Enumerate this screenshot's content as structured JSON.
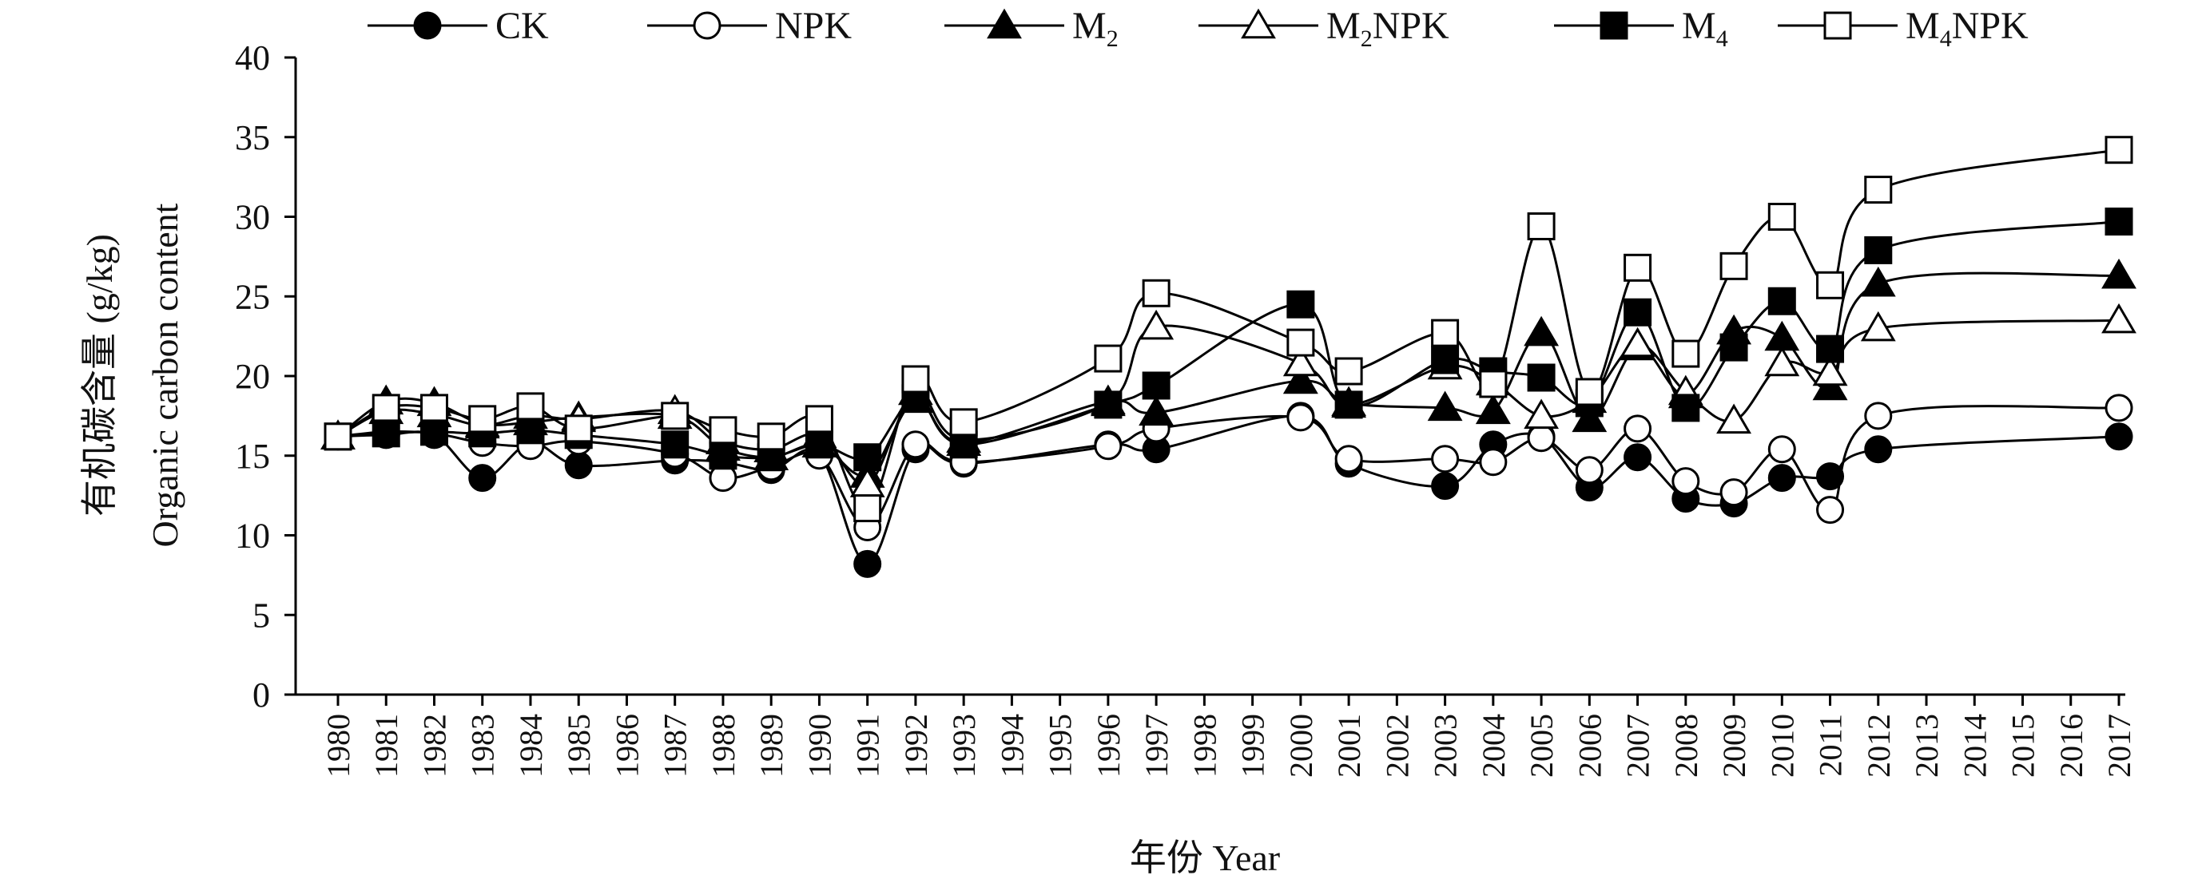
{
  "chart_data": {
    "type": "line",
    "title": "",
    "ylabel_cn": "有机碳含量 (g/kg)",
    "ylabel_en": "Organic carbon content",
    "xlabel": "年份 Year",
    "ylim": [
      0,
      40
    ],
    "yticks": [
      0,
      5,
      10,
      15,
      20,
      25,
      30,
      35,
      40
    ],
    "grid": false,
    "legend_position": "top",
    "x": [
      1980,
      1981,
      1982,
      1983,
      1984,
      1985,
      1986,
      1987,
      1988,
      1989,
      1990,
      1991,
      1992,
      1993,
      1994,
      1995,
      1996,
      1997,
      1998,
      1999,
      2000,
      2001,
      2002,
      2003,
      2004,
      2005,
      2006,
      2007,
      2008,
      2009,
      2010,
      2011,
      2012,
      2013,
      2014,
      2015,
      2016,
      2017
    ],
    "x_tick_labels": [
      "1980",
      "1981",
      "1982",
      "1983",
      "1984",
      "1985",
      "1986",
      "1987",
      "1988",
      "1989",
      "1990",
      "1991",
      "1992",
      "1993",
      "1994",
      "1995",
      "1996",
      "1997",
      "1998",
      "1999",
      "2000",
      "2001",
      "2002",
      "2003",
      "2004",
      "2005",
      "2006",
      "2007",
      "2008",
      "2009",
      "2010",
      "2011",
      "2012",
      "2013",
      "2014",
      "2015",
      "2016",
      "2017"
    ],
    "series": [
      {
        "name": "CK",
        "name_main": "CK",
        "name_sub": "",
        "name_tail": "",
        "marker": "circle",
        "filled": true,
        "x": [
          1980,
          1981,
          1982,
          1983,
          1984,
          1985,
          1987,
          1988,
          1989,
          1990,
          1991,
          1992,
          1993,
          1996,
          1997,
          2000,
          2001,
          2003,
          2004,
          2005,
          2006,
          2007,
          2008,
          2009,
          2010,
          2011,
          2012,
          2017
        ],
        "values": [
          16.2,
          16.3,
          16.3,
          13.6,
          15.8,
          14.4,
          14.7,
          14.6,
          14.1,
          15.1,
          8.2,
          15.4,
          14.5,
          15.7,
          15.4,
          17.5,
          14.5,
          13.1,
          15.7,
          16.2,
          13.0,
          14.9,
          12.3,
          12.0,
          13.6,
          13.7,
          15.4,
          16.2
        ]
      },
      {
        "name": "NPK",
        "name_main": "NPK",
        "name_sub": "",
        "name_tail": "",
        "marker": "circle",
        "filled": false,
        "x": [
          1980,
          1981,
          1982,
          1983,
          1984,
          1985,
          1987,
          1988,
          1989,
          1990,
          1991,
          1992,
          1993,
          1996,
          1997,
          2000,
          2001,
          2003,
          2004,
          2005,
          2006,
          2007,
          2008,
          2009,
          2010,
          2011,
          2012,
          2017
        ],
        "values": [
          16.2,
          16.5,
          16.4,
          15.8,
          15.6,
          15.9,
          15.1,
          13.6,
          14.3,
          15.0,
          10.5,
          15.7,
          14.6,
          15.6,
          16.7,
          17.4,
          14.8,
          14.8,
          14.6,
          16.1,
          14.1,
          16.7,
          13.4,
          12.7,
          15.4,
          11.6,
          17.5,
          18.0
        ]
      },
      {
        "name": "M2",
        "name_main": "M",
        "name_sub": "2",
        "name_tail": "",
        "marker": "triangle",
        "filled": true,
        "x": [
          1980,
          1981,
          1982,
          1983,
          1984,
          1985,
          1987,
          1988,
          1989,
          1990,
          1991,
          1992,
          1993,
          1996,
          1997,
          2000,
          2001,
          2003,
          2004,
          2005,
          2006,
          2007,
          2008,
          2009,
          2010,
          2011,
          2012,
          2017
        ],
        "values": [
          16.2,
          18.4,
          18.3,
          17.0,
          17.1,
          17.4,
          17.5,
          15.5,
          14.9,
          15.7,
          13.8,
          18.5,
          15.8,
          18.4,
          17.7,
          19.7,
          18.3,
          18.0,
          17.8,
          22.7,
          17.3,
          21.8,
          18.8,
          22.8,
          22.4,
          19.3,
          25.8,
          26.3
        ]
      },
      {
        "name": "M2NPK",
        "name_main": "M",
        "name_sub": "2",
        "name_tail": "NPK",
        "marker": "triangle",
        "filled": false,
        "x": [
          1980,
          1981,
          1982,
          1983,
          1984,
          1985,
          1987,
          1988,
          1989,
          1990,
          1991,
          1992,
          1993,
          1996,
          1997,
          2000,
          2001,
          2003,
          2004,
          2005,
          2006,
          2007,
          2008,
          2009,
          2010,
          2011,
          2012,
          2017
        ],
        "values": [
          16.2,
          17.8,
          17.6,
          16.9,
          17.5,
          17.3,
          17.8,
          15.9,
          15.4,
          16.3,
          13.2,
          19.0,
          16.0,
          18.3,
          23.1,
          20.8,
          18.2,
          20.6,
          19.6,
          17.5,
          18.5,
          22.0,
          19.0,
          17.2,
          20.8,
          20.2,
          23.0,
          23.5
        ]
      },
      {
        "name": "M4",
        "name_main": "M",
        "name_sub": "4",
        "name_tail": "",
        "marker": "square",
        "filled": true,
        "x": [
          1980,
          1981,
          1982,
          1983,
          1984,
          1985,
          1987,
          1988,
          1989,
          1990,
          1991,
          1992,
          1993,
          1996,
          1997,
          2000,
          2001,
          2003,
          2004,
          2005,
          2006,
          2007,
          2008,
          2009,
          2010,
          2011,
          2012,
          2017
        ],
        "values": [
          16.2,
          16.4,
          16.5,
          16.4,
          16.6,
          16.3,
          15.7,
          15.0,
          14.9,
          15.7,
          14.9,
          18.6,
          15.7,
          18.2,
          19.4,
          24.5,
          18.2,
          21.0,
          20.3,
          19.9,
          18.3,
          24.0,
          18.0,
          21.8,
          24.7,
          21.7,
          27.9,
          29.7
        ]
      },
      {
        "name": "M4NPK",
        "name_main": "M",
        "name_sub": "4",
        "name_tail": "NPK",
        "marker": "square",
        "filled": false,
        "x": [
          1980,
          1981,
          1982,
          1983,
          1984,
          1985,
          1987,
          1988,
          1989,
          1990,
          1991,
          1992,
          1993,
          1996,
          1997,
          2000,
          2001,
          2003,
          2004,
          2005,
          2006,
          2007,
          2008,
          2009,
          2010,
          2011,
          2012,
          2017
        ],
        "values": [
          16.2,
          18.0,
          18.0,
          17.3,
          18.1,
          16.7,
          17.5,
          16.6,
          16.2,
          17.3,
          11.7,
          19.8,
          17.1,
          21.1,
          25.2,
          22.1,
          20.3,
          22.7,
          19.5,
          29.4,
          19.0,
          26.8,
          21.4,
          26.9,
          30.0,
          25.7,
          31.7,
          34.2
        ]
      }
    ]
  }
}
